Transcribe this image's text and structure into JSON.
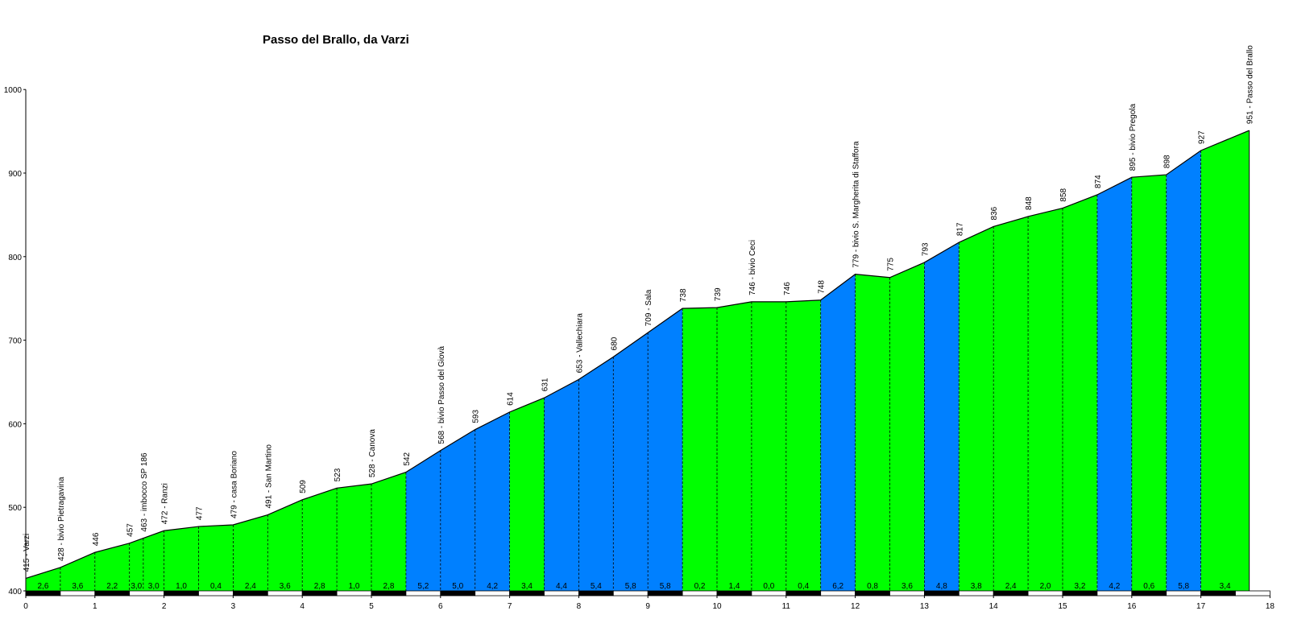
{
  "colors": {
    "moderate": "#00ff00",
    "steep": "#0080ff",
    "outline": "#000000",
    "background": "#ffffff"
  },
  "chart_data": {
    "type": "area",
    "title": "Passo del Brallo, da Varzi",
    "xlabel": "",
    "ylabel": "",
    "xlim": [
      0,
      18
    ],
    "ylim": [
      400,
      1000
    ],
    "xticks": [
      "0",
      "1",
      "2",
      "3",
      "4",
      "5",
      "6",
      "7",
      "8",
      "9",
      "10",
      "11",
      "12",
      "13",
      "14",
      "15",
      "16",
      "17",
      "18"
    ],
    "yticks": [
      "400",
      "500",
      "600",
      "700",
      "800",
      "900",
      "1000"
    ],
    "grid": false,
    "points": [
      {
        "km": 0.0,
        "alt": 415,
        "label": "415 - Varzi"
      },
      {
        "km": 0.5,
        "alt": 428,
        "label": "428 - bivio Pietragavina"
      },
      {
        "km": 1.0,
        "alt": 446,
        "label": "446"
      },
      {
        "km": 1.5,
        "alt": 457,
        "label": "457"
      },
      {
        "km": 1.7,
        "alt": 463,
        "label": "463 - imbocco SP 186"
      },
      {
        "km": 2.0,
        "alt": 472,
        "label": "472 - Ranzi"
      },
      {
        "km": 2.5,
        "alt": 477,
        "label": "477"
      },
      {
        "km": 3.0,
        "alt": 479,
        "label": "479 - casa Boriano"
      },
      {
        "km": 3.5,
        "alt": 491,
        "label": "491 - San Martino"
      },
      {
        "km": 4.0,
        "alt": 509,
        "label": "509"
      },
      {
        "km": 4.5,
        "alt": 523,
        "label": "523"
      },
      {
        "km": 5.0,
        "alt": 528,
        "label": "528 - Canova"
      },
      {
        "km": 5.5,
        "alt": 542,
        "label": "542"
      },
      {
        "km": 6.0,
        "alt": 568,
        "label": "568 - bivio Passo del Giovà"
      },
      {
        "km": 6.5,
        "alt": 593,
        "label": "593"
      },
      {
        "km": 7.0,
        "alt": 614,
        "label": "614"
      },
      {
        "km": 7.5,
        "alt": 631,
        "label": "631"
      },
      {
        "km": 8.0,
        "alt": 653,
        "label": "653 - Vallechiara"
      },
      {
        "km": 8.5,
        "alt": 680,
        "label": "680"
      },
      {
        "km": 9.0,
        "alt": 709,
        "label": "709 - Sala"
      },
      {
        "km": 9.5,
        "alt": 738,
        "label": "738"
      },
      {
        "km": 10.0,
        "alt": 739,
        "label": "739"
      },
      {
        "km": 10.5,
        "alt": 746,
        "label": "746 - bivio Ceci"
      },
      {
        "km": 11.0,
        "alt": 746,
        "label": "746"
      },
      {
        "km": 11.5,
        "alt": 748,
        "label": "748"
      },
      {
        "km": 12.0,
        "alt": 779,
        "label": "779 - bivio S. Margherita di Staffora"
      },
      {
        "km": 12.5,
        "alt": 775,
        "label": "775"
      },
      {
        "km": 13.0,
        "alt": 793,
        "label": "793"
      },
      {
        "km": 13.5,
        "alt": 817,
        "label": "817"
      },
      {
        "km": 14.0,
        "alt": 836,
        "label": "836"
      },
      {
        "km": 14.5,
        "alt": 848,
        "label": "848"
      },
      {
        "km": 15.0,
        "alt": 858,
        "label": "858"
      },
      {
        "km": 15.5,
        "alt": 874,
        "label": "874"
      },
      {
        "km": 16.0,
        "alt": 895,
        "label": "895 - bivio Pregola"
      },
      {
        "km": 16.5,
        "alt": 898,
        "label": "898"
      },
      {
        "km": 17.0,
        "alt": 927,
        "label": "927"
      },
      {
        "km": 17.7,
        "alt": 951,
        "label": "951 - Passo del Brallo"
      }
    ],
    "segments": [
      {
        "grade": "2,6",
        "color": "moderate"
      },
      {
        "grade": "3,6",
        "color": "moderate"
      },
      {
        "grade": "2,2",
        "color": "moderate"
      },
      {
        "grade": "3,0",
        "color": "moderate"
      },
      {
        "grade": "3,0",
        "color": "moderate"
      },
      {
        "grade": "1,0",
        "color": "moderate"
      },
      {
        "grade": "0,4",
        "color": "moderate"
      },
      {
        "grade": "2,4",
        "color": "moderate"
      },
      {
        "grade": "3,6",
        "color": "moderate"
      },
      {
        "grade": "2,8",
        "color": "moderate"
      },
      {
        "grade": "1,0",
        "color": "moderate"
      },
      {
        "grade": "2,8",
        "color": "moderate"
      },
      {
        "grade": "5,2",
        "color": "steep"
      },
      {
        "grade": "5,0",
        "color": "steep"
      },
      {
        "grade": "4,2",
        "color": "steep"
      },
      {
        "grade": "3,4",
        "color": "moderate"
      },
      {
        "grade": "4,4",
        "color": "steep"
      },
      {
        "grade": "5,4",
        "color": "steep"
      },
      {
        "grade": "5,8",
        "color": "steep"
      },
      {
        "grade": "5,8",
        "color": "steep"
      },
      {
        "grade": "0,2",
        "color": "moderate"
      },
      {
        "grade": "1,4",
        "color": "moderate"
      },
      {
        "grade": "0,0",
        "color": "moderate"
      },
      {
        "grade": "0,4",
        "color": "moderate"
      },
      {
        "grade": "6,2",
        "color": "steep"
      },
      {
        "grade": "0,8",
        "color": "moderate"
      },
      {
        "grade": "3,6",
        "color": "moderate"
      },
      {
        "grade": "4,8",
        "color": "steep"
      },
      {
        "grade": "3,8",
        "color": "moderate"
      },
      {
        "grade": "2,4",
        "color": "moderate"
      },
      {
        "grade": "2,0",
        "color": "moderate"
      },
      {
        "grade": "3,2",
        "color": "moderate"
      },
      {
        "grade": "4,2",
        "color": "steep"
      },
      {
        "grade": "0,6",
        "color": "moderate"
      },
      {
        "grade": "5,8",
        "color": "steep"
      },
      {
        "grade": "3,4",
        "color": "moderate"
      }
    ]
  }
}
